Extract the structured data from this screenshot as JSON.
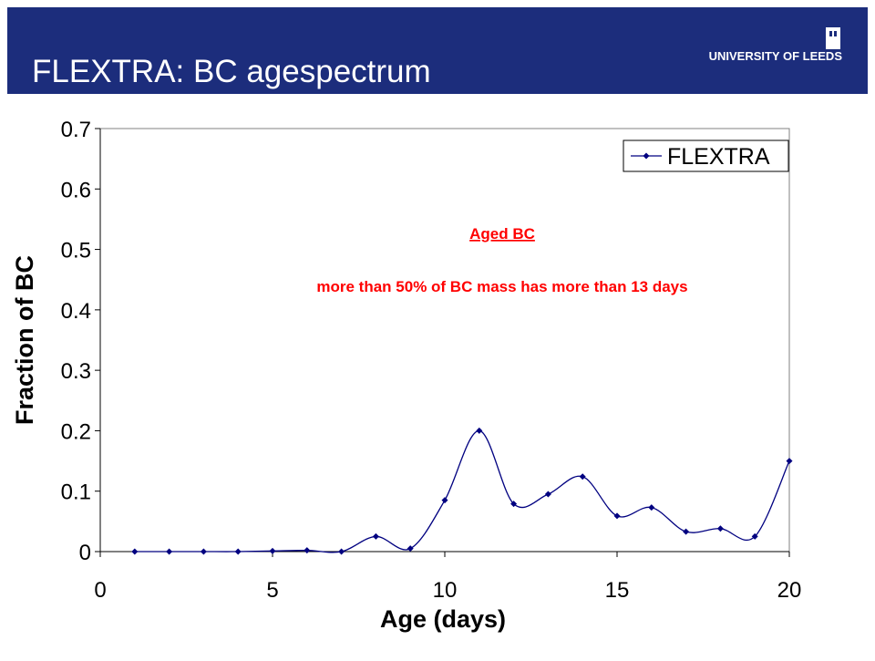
{
  "header": {
    "logo_text": "UNIVERSITY OF LEEDS"
  },
  "chart_data": {
    "type": "line",
    "title": "FLEXTRA: BC agespectrum",
    "x_label": "Age (days)",
    "y_label": "Fraction of BC",
    "annotations": [
      "Aged BC",
      "more than 50% of BC mass has more than 13 days"
    ],
    "annotation_color": "#ff0000",
    "smooth": true,
    "legend": "top-right",
    "series": [
      {
        "name": "FLEXTRA",
        "color": "#000080",
        "x": [
          1,
          2,
          3,
          4,
          5,
          6,
          7,
          8,
          9,
          10,
          11,
          12,
          13,
          14,
          15,
          16,
          17,
          18,
          19,
          20
        ],
        "values": [
          0,
          0,
          0,
          0,
          0.001,
          0.002,
          0,
          0.025,
          0.005,
          0.085,
          0.2,
          0.079,
          0.095,
          0.124,
          0.059,
          0.073,
          0.033,
          0.038,
          0.025,
          0.15
        ]
      }
    ],
    "xlim": [
      0,
      20
    ],
    "xticks": [
      0,
      5,
      10,
      15,
      20
    ],
    "ylim": [
      0,
      0.7
    ],
    "yticks": [
      0,
      0.1,
      0.2,
      0.3,
      0.4,
      0.5,
      0.6,
      0.7
    ]
  }
}
